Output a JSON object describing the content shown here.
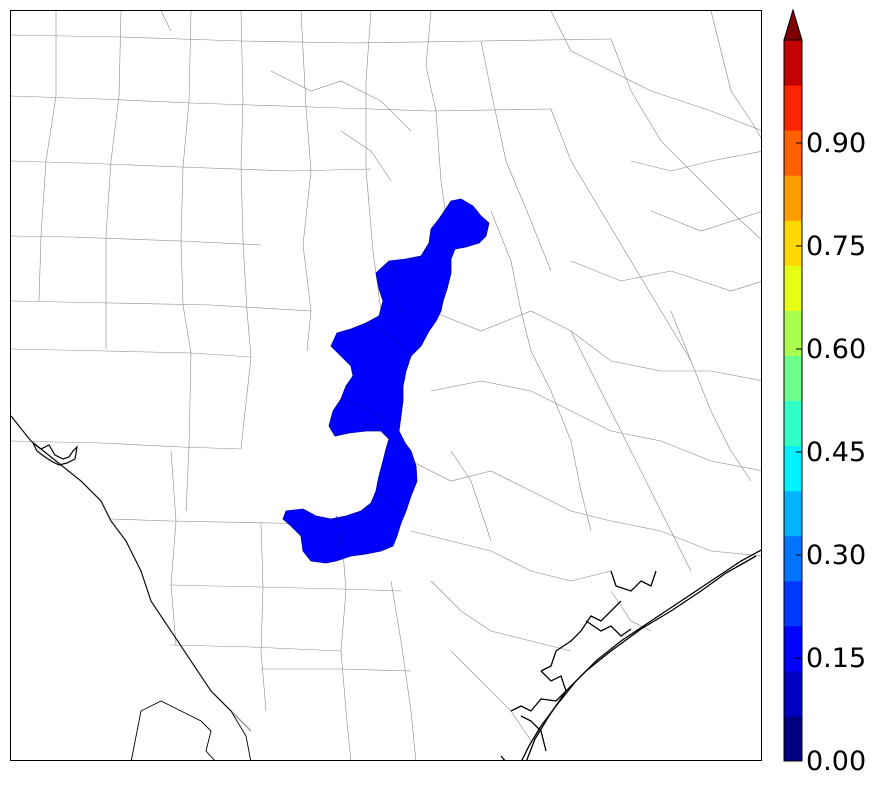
{
  "map": {
    "type": "choropleth-overlay",
    "shaded_value_color": "#0000ff",
    "background": "#ffffff",
    "county_line_color": "#888888",
    "coast_color": "#000000"
  },
  "colorbar": {
    "colors": [
      "#00007f",
      "#0000c4",
      "#0000ff",
      "#0038ff",
      "#0074ff",
      "#00b4ff",
      "#00f0ff",
      "#30ffc6",
      "#6cff8a",
      "#a8ff4e",
      "#e4ff12",
      "#ffd800",
      "#ff9c00",
      "#ff6000",
      "#ff2400",
      "#c40000",
      "#7f0000"
    ],
    "ticks": [
      "0.00",
      "0.15",
      "0.30",
      "0.45",
      "0.60",
      "0.75",
      "0.90"
    ],
    "range": [
      0,
      1.05
    ],
    "extend": "max"
  }
}
